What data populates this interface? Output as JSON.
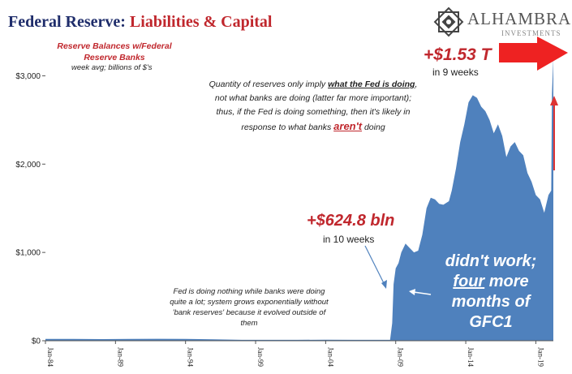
{
  "chart_data": {
    "type": "area",
    "title": "Federal Reserve:",
    "title_emphasis": "Liabilities & Capital",
    "series": [
      {
        "name": "Reserve Balances w/Federal Reserve Banks",
        "unit_note": "week avg; billions of $'s",
        "color": "#4f81bd",
        "points": [
          [
            1984.0,
            20
          ],
          [
            1986.0,
            20
          ],
          [
            1988.0,
            18
          ],
          [
            1990.0,
            20
          ],
          [
            1992.0,
            22
          ],
          [
            1994.0,
            20
          ],
          [
            1996.0,
            16
          ],
          [
            1998.0,
            10
          ],
          [
            2000.0,
            10
          ],
          [
            2002.0,
            10
          ],
          [
            2004.0,
            12
          ],
          [
            2006.0,
            10
          ],
          [
            2008.6,
            10
          ],
          [
            2008.75,
            200
          ],
          [
            2008.85,
            640
          ],
          [
            2009.0,
            820
          ],
          [
            2009.2,
            880
          ],
          [
            2009.4,
            1000
          ],
          [
            2009.7,
            1100
          ],
          [
            2010.0,
            1050
          ],
          [
            2010.3,
            1000
          ],
          [
            2010.6,
            1020
          ],
          [
            2010.9,
            1200
          ],
          [
            2011.2,
            1500
          ],
          [
            2011.5,
            1620
          ],
          [
            2011.8,
            1600
          ],
          [
            2012.1,
            1550
          ],
          [
            2012.4,
            1540
          ],
          [
            2012.8,
            1580
          ],
          [
            2013.0,
            1700
          ],
          [
            2013.3,
            1950
          ],
          [
            2013.6,
            2250
          ],
          [
            2013.9,
            2450
          ],
          [
            2014.2,
            2700
          ],
          [
            2014.5,
            2780
          ],
          [
            2014.8,
            2750
          ],
          [
            2015.1,
            2650
          ],
          [
            2015.4,
            2600
          ],
          [
            2015.7,
            2500
          ],
          [
            2016.0,
            2350
          ],
          [
            2016.3,
            2450
          ],
          [
            2016.6,
            2320
          ],
          [
            2016.9,
            2080
          ],
          [
            2017.2,
            2200
          ],
          [
            2017.5,
            2250
          ],
          [
            2017.8,
            2150
          ],
          [
            2018.1,
            2100
          ],
          [
            2018.4,
            1900
          ],
          [
            2018.7,
            1800
          ],
          [
            2019.0,
            1650
          ],
          [
            2019.3,
            1600
          ],
          [
            2019.6,
            1450
          ],
          [
            2019.9,
            1650
          ],
          [
            2020.1,
            1700
          ],
          [
            2020.15,
            2800
          ],
          [
            2020.25,
            3200
          ]
        ]
      }
    ],
    "x_ticks": [
      {
        "value": 1984,
        "label": "Jan-84"
      },
      {
        "value": 1989,
        "label": "Jan-89"
      },
      {
        "value": 1994,
        "label": "Jan-94"
      },
      {
        "value": 1999,
        "label": "Jan-99"
      },
      {
        "value": 2004,
        "label": "Jan-04"
      },
      {
        "value": 2009,
        "label": "Jan-09"
      },
      {
        "value": 2014,
        "label": "Jan-14"
      },
      {
        "value": 2019,
        "label": "Jan-19"
      }
    ],
    "y_ticks": [
      {
        "value": 0,
        "label": "$0"
      },
      {
        "value": 1000,
        "label": "$1,000"
      },
      {
        "value": 2000,
        "label": "$2,000"
      },
      {
        "value": 3000,
        "label": "$3,000"
      }
    ],
    "xlim": [
      1984,
      2020.25
    ],
    "ylim": [
      0,
      3500
    ],
    "grid": false,
    "annotations": {
      "note_top": {
        "line1": "Quantity of reserves only imply ",
        "line1_emph": "what the Fed is doing",
        "line2": ", not what banks are doing (latter far more important); thus, if the Fed is doing something, then it's likely in response to what banks ",
        "line2_emph": "aren't",
        "line3": " doing"
      },
      "recent_jump": "+$1.53 T",
      "recent_period": "in 9 weeks",
      "gfc_jump": "+$624.8 bln",
      "gfc_period": "in 10 weeks",
      "note_bottom": "Fed is doing nothing while banks were doing quite a lot; system grows exponentially without 'bank reserves' because it evolved outside of them",
      "gfc_label_1": "didn't work;",
      "gfc_label_2": "four",
      "gfc_label_3": " more months of GFC1",
      "arrow_color": "#ee2222"
    }
  },
  "brand": {
    "name": "ALHAMBRA",
    "subtitle": "INVESTMENTS"
  }
}
